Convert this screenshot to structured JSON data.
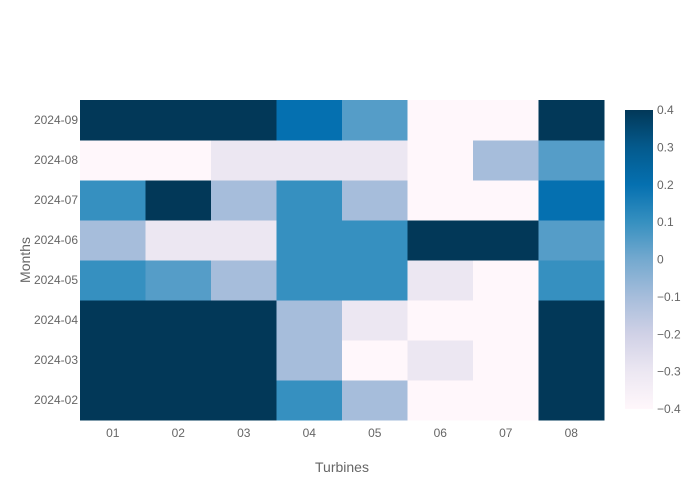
{
  "chart_data": {
    "type": "heatmap",
    "xlabel": "Turbines",
    "ylabel": "Months",
    "x": [
      "01",
      "02",
      "03",
      "04",
      "05",
      "06",
      "07",
      "08"
    ],
    "y": [
      "2024-02",
      "2024-03",
      "2024-04",
      "2024-05",
      "2024-06",
      "2024-07",
      "2024-08",
      "2024-09"
    ],
    "z": [
      [
        0.4,
        0.4,
        0.4,
        0.1,
        -0.1,
        -0.4,
        -0.4,
        0.4
      ],
      [
        0.4,
        0.4,
        0.4,
        -0.1,
        -0.4,
        -0.3,
        -0.4,
        0.4
      ],
      [
        0.4,
        0.4,
        0.4,
        -0.1,
        -0.3,
        -0.4,
        -0.4,
        0.4
      ],
      [
        0.1,
        0.05,
        -0.1,
        0.1,
        0.1,
        -0.3,
        -0.4,
        0.1
      ],
      [
        -0.1,
        -0.3,
        -0.3,
        0.1,
        0.1,
        0.4,
        0.4,
        0.05
      ],
      [
        0.1,
        0.4,
        -0.1,
        0.1,
        -0.1,
        -0.4,
        -0.4,
        0.2
      ],
      [
        -0.4,
        -0.4,
        -0.3,
        -0.3,
        -0.3,
        -0.4,
        -0.1,
        0.05
      ],
      [
        0.4,
        0.4,
        0.4,
        0.2,
        0.05,
        -0.4,
        -0.4,
        0.4
      ]
    ],
    "zlim": [
      -0.4,
      0.4
    ],
    "colorbar": {
      "ticks": [
        0.4,
        0.3,
        0.2,
        0.1,
        0,
        -0.1,
        -0.2,
        -0.3,
        -0.4
      ],
      "tick_labels": [
        "0.4",
        "0.3",
        "0.2",
        "0.1",
        "0",
        "−0.1",
        "−0.2",
        "−0.3",
        "−0.4"
      ],
      "placement": "right"
    },
    "colorscale": [
      "#fff7fb",
      "#ece7f2",
      "#d0d1e6",
      "#a6bddb",
      "#74a9cf",
      "#3690c0",
      "#0570b0",
      "#045a8d",
      "#023858"
    ],
    "grid": false
  }
}
